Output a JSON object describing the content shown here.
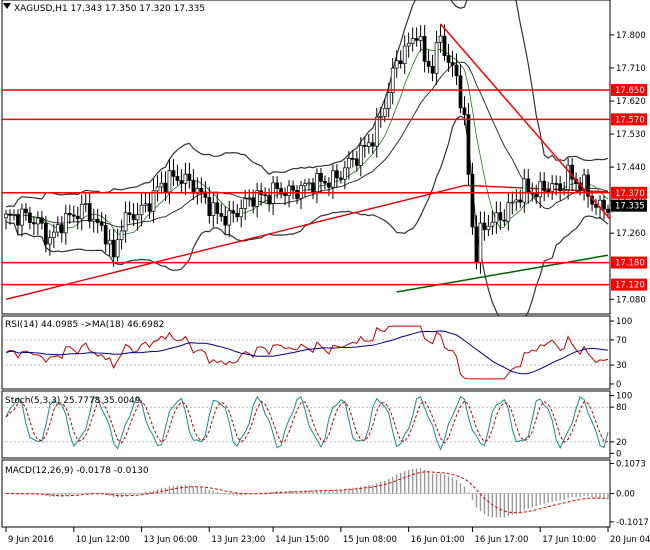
{
  "chart_data": [
    {
      "type": "candlestick",
      "title": "XAGUSD,H1  17.343 17.350 17.320 17.335",
      "symbol": "XAGUSD,H1",
      "ohlc_readout": [
        "17.343",
        "17.350",
        "17.320",
        "17.335"
      ],
      "ylim": [
        17.08,
        17.89
      ],
      "y_ticks": [
        "17.890",
        "17.800",
        "17.710",
        "17.620",
        "17.530",
        "17.440",
        "17.350",
        "17.260",
        "17.080"
      ],
      "levels": [
        {
          "label": "17.650",
          "value": 17.65
        },
        {
          "label": "17.570",
          "value": 17.57
        },
        {
          "label": "17.370",
          "value": 17.37
        },
        {
          "label": "17.180",
          "value": 17.18
        },
        {
          "label": "17.120",
          "value": 17.12
        }
      ],
      "current_price_label": "17.335",
      "current_price": 17.335,
      "trendline": [
        {
          "bar": 109,
          "price": 17.83
        },
        {
          "bar": 149,
          "price": 17.33
        }
      ],
      "x_ticks": [
        {
          "label": "9 Jun 2016",
          "bar": 0
        },
        {
          "label": "10 Jun 12:00",
          "bar": 17
        },
        {
          "label": "13 Jun 06:00",
          "bar": 34
        },
        {
          "label": "13 Jun 23:00",
          "bar": 51
        },
        {
          "label": "14 Jun 15:00",
          "bar": 67
        },
        {
          "label": "15 Jun 08:00",
          "bar": 84
        },
        {
          "label": "16 Jun 01:00",
          "bar": 101
        },
        {
          "label": "16 Jun 17:00",
          "bar": 117
        },
        {
          "label": "17 Jun 10:00",
          "bar": 134
        },
        {
          "label": "20 Jun 04:00",
          "bar": 151
        }
      ],
      "n_bars": 152,
      "colors": {
        "level": "#ff0000",
        "trend": "#ff0000",
        "ma_long": "#006400",
        "ma_slow": "#ff0000",
        "bands": "#000000"
      }
    },
    {
      "type": "line",
      "title": "RSI(14) 44.0985 ->MA(18) 46.6982",
      "ylim": [
        0,
        100
      ],
      "y_ticks": [
        "100",
        "70",
        "30",
        "0"
      ],
      "series": [
        {
          "name": "RSI(14)",
          "last": 44.0985
        },
        {
          "name": "MA(18)",
          "last": 46.6982
        }
      ]
    },
    {
      "type": "line",
      "title": "Stoch(5,3,3) 25.7778 35.0049",
      "ylim": [
        0,
        100
      ],
      "y_ticks": [
        "100",
        "80",
        "20",
        "0"
      ],
      "series": [
        {
          "name": "Stoch %K",
          "last": 25.7778
        },
        {
          "name": "Signal",
          "last": 35.0049
        }
      ]
    },
    {
      "type": "bar",
      "title": "MACD(12,26,9) -0.0178 -0.0130",
      "ylim": [
        -0.12,
        0.12
      ],
      "y_ticks": [
        "0.1073",
        "0.00",
        "-0.1017"
      ],
      "series": [
        {
          "name": "MACD",
          "last": -0.0178
        },
        {
          "name": "Signal",
          "last": -0.013
        }
      ]
    }
  ]
}
